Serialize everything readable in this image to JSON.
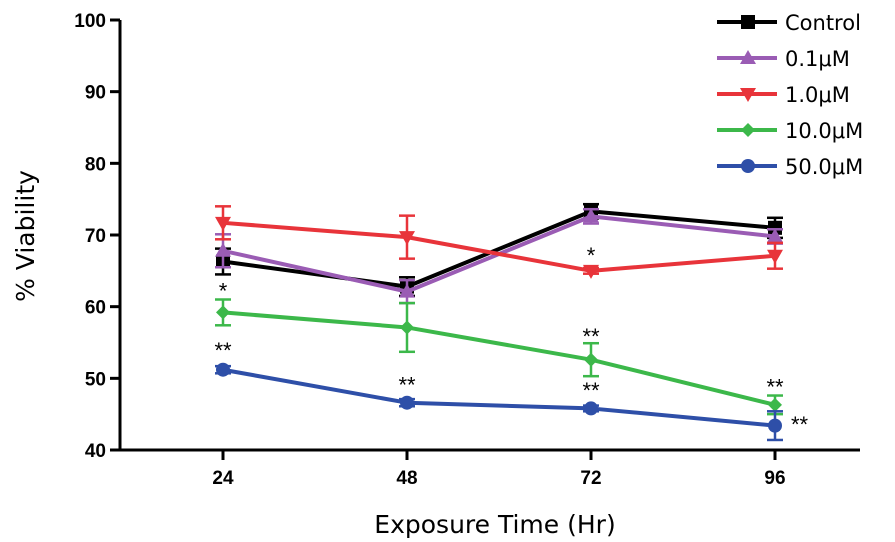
{
  "chart_data": {
    "type": "line",
    "title": "",
    "xlabel": "Exposure Time (Hr)",
    "ylabel": "% Viability",
    "x": [
      24,
      48,
      72,
      96
    ],
    "xticks": [
      "24",
      "48",
      "72",
      "96"
    ],
    "ylim": [
      40,
      100
    ],
    "yticks": [
      "40",
      "50",
      "60",
      "70",
      "80",
      "90",
      "100"
    ],
    "grid": false,
    "legend_position": "top-right",
    "series": [
      {
        "name": "Control",
        "color": "#000000",
        "marker": "square",
        "values": [
          66.3,
          62.8,
          73.3,
          71.0
        ],
        "errors": [
          1.8,
          1.3,
          1.0,
          1.4
        ]
      },
      {
        "name": "0.1μM",
        "color": "#9a5cb4",
        "marker": "triangle-up",
        "values": [
          67.8,
          62.1,
          72.6,
          69.8
        ],
        "errors": [
          2.3,
          1.6,
          1.0,
          1.0
        ]
      },
      {
        "name": "1.0μM",
        "color": "#e8343a",
        "marker": "triangle-down",
        "values": [
          71.7,
          69.7,
          65.0,
          67.1
        ],
        "errors": [
          2.3,
          3.0,
          0.4,
          1.8
        ]
      },
      {
        "name": "10.0μM",
        "color": "#3cb84a",
        "marker": "diamond",
        "values": [
          59.2,
          57.1,
          52.6,
          46.3
        ],
        "errors": [
          1.8,
          3.4,
          2.3,
          1.3
        ]
      },
      {
        "name": "50.0μM",
        "color": "#2e4fa8",
        "marker": "circle",
        "values": [
          51.2,
          46.6,
          45.8,
          43.4
        ],
        "errors": [
          0.5,
          0.5,
          0.4,
          2.0
        ]
      }
    ],
    "annotations": [
      {
        "text": "*",
        "x": 24,
        "y": 62.8
      },
      {
        "text": "**",
        "x": 24,
        "y": 54.5
      },
      {
        "text": "**",
        "x": 48,
        "y": 49.7
      },
      {
        "text": "*",
        "x": 72,
        "y": 67.8
      },
      {
        "text": "**",
        "x": 72,
        "y": 56.5
      },
      {
        "text": "**",
        "x": 72,
        "y": 48.9
      },
      {
        "text": "**",
        "x": 96,
        "y": 49.4
      },
      {
        "text": "**",
        "x": 99.2,
        "y": 44.2
      }
    ]
  }
}
